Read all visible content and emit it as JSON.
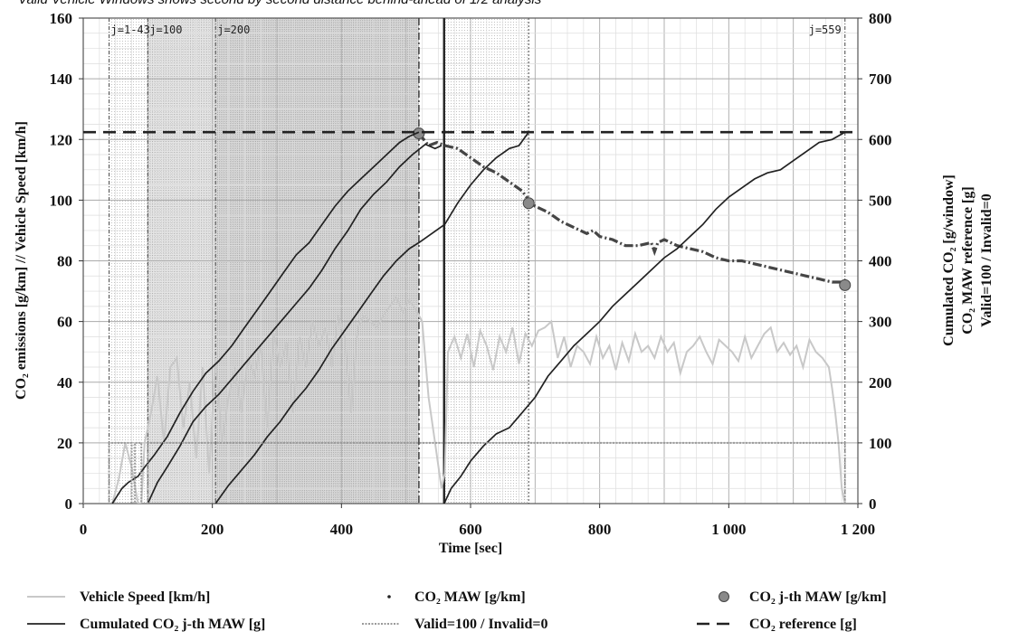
{
  "top_caption": "Valid Vehicle Windows shows second by second distance behind-ahead of 1/2 analysis",
  "chart_data": {
    "type": "line",
    "xlabel": "Time [sec]",
    "ylabel_left": "CO₂ emissions [g/km] // Vehicle Speed [km/h]",
    "ylabel_right": [
      "Cumulated CO₂ [g/window]",
      "CO₂ MAW reference [g]",
      "Valid=100 / Invalid=0"
    ],
    "xlim": [
      0,
      1200
    ],
    "ylim_left": [
      0,
      160
    ],
    "ylim_right": [
      0,
      800
    ],
    "x_ticks": [
      0,
      200,
      400,
      600,
      800,
      1000,
      1200
    ],
    "x_tick_labels": [
      "0",
      "200",
      "400",
      "600",
      "800",
      "1 000",
      "1 200"
    ],
    "y_left_ticks": [
      0,
      20,
      40,
      60,
      80,
      100,
      120,
      140,
      160
    ],
    "y_left_tick_labels": [
      "0",
      "20",
      "40",
      "60",
      "80",
      "100",
      "120",
      "140",
      "160"
    ],
    "y_right_ticks": [
      0,
      100,
      200,
      300,
      400,
      500,
      600,
      700,
      800
    ],
    "y_right_tick_labels": [
      "0",
      "100",
      "200",
      "300",
      "400",
      "500",
      "600",
      "700",
      "800"
    ],
    "grid": true,
    "window_markers": [
      {
        "label": "j=1-43",
        "x": 40
      },
      {
        "label": "j=100",
        "x": 100
      },
      {
        "label": "j=200",
        "x": 205
      },
      {
        "label": "j=559",
        "x": 1180
      }
    ],
    "shaded_windows": [
      {
        "x": [
          40,
          520
        ],
        "shade": "light"
      },
      {
        "x": [
          100,
          520
        ],
        "shade": "medium"
      },
      {
        "x": [
          205,
          520
        ],
        "shade": "medium"
      },
      {
        "x": [
          559,
          690
        ],
        "shade": "light"
      }
    ],
    "series": [
      {
        "name": "Vehicle Speed [km/h]",
        "axis": "left",
        "style": "vehicle-speed",
        "x": [
          45,
          55,
          65,
          75,
          85,
          90,
          95,
          105,
          115,
          125,
          135,
          145,
          155,
          165,
          175,
          185,
          195,
          205,
          215,
          225,
          235,
          245,
          255,
          265,
          275,
          285,
          295,
          305,
          315,
          325,
          335,
          345,
          355,
          365,
          375,
          385,
          395,
          405,
          415,
          425,
          435,
          445,
          455,
          465,
          475,
          485,
          495,
          505,
          515,
          525,
          535,
          545,
          555,
          560,
          565,
          575,
          585,
          595,
          605,
          615,
          625,
          635,
          645,
          655,
          665,
          675,
          685,
          695,
          705,
          715,
          725,
          735,
          745,
          755,
          765,
          775,
          785,
          795,
          805,
          815,
          825,
          835,
          845,
          855,
          865,
          875,
          885,
          895,
          905,
          915,
          925,
          935,
          945,
          955,
          965,
          975,
          985,
          995,
          1005,
          1015,
          1025,
          1035,
          1045,
          1055,
          1065,
          1075,
          1085,
          1095,
          1105,
          1115,
          1125,
          1135,
          1145,
          1155,
          1160,
          1165,
          1170,
          1175,
          1180
        ],
        "values": [
          0,
          8,
          20,
          12,
          0,
          0,
          20,
          30,
          42,
          20,
          45,
          48,
          25,
          40,
          15,
          45,
          10,
          48,
          20,
          35,
          45,
          30,
          48,
          42,
          52,
          25,
          56,
          45,
          53,
          30,
          55,
          45,
          60,
          52,
          58,
          45,
          62,
          55,
          30,
          58,
          62,
          60,
          58,
          62,
          65,
          68,
          63,
          67,
          64,
          60,
          35,
          20,
          5,
          10,
          50,
          55,
          48,
          56,
          45,
          57,
          52,
          44,
          55,
          50,
          58,
          46,
          56,
          52,
          57,
          58,
          60,
          48,
          55,
          45,
          52,
          50,
          46,
          55,
          48,
          52,
          44,
          53,
          47,
          56,
          50,
          52,
          48,
          55,
          50,
          53,
          43,
          50,
          52,
          55,
          50,
          46,
          54,
          52,
          50,
          47,
          55,
          48,
          52,
          56,
          58,
          50,
          53,
          49,
          52,
          45,
          54,
          50,
          48,
          45,
          38,
          30,
          20,
          5,
          0
        ]
      },
      {
        "name": "CO₂ MAW [g/km]",
        "axis": "left",
        "style": "maw",
        "x": [
          520,
          535,
          548,
          560,
          580,
          600,
          620,
          640,
          660,
          680,
          690,
          700,
          720,
          740,
          760,
          780,
          790,
          800,
          820,
          840,
          860,
          880,
          885,
          890,
          900,
          920,
          940,
          960,
          980,
          1000,
          1020,
          1040,
          1060,
          1080,
          1100,
          1120,
          1140,
          1160,
          1180
        ],
        "values": [
          122,
          118,
          119,
          118,
          117,
          114,
          111,
          109,
          106,
          103,
          100,
          98,
          96,
          93,
          91,
          89,
          90,
          88,
          87,
          85,
          85,
          86,
          83,
          86,
          87,
          85,
          84,
          83,
          81,
          80,
          80,
          79,
          78,
          77,
          76,
          75,
          74,
          73,
          73
        ]
      },
      {
        "name": "CO₂ j-th MAW [g/km]",
        "axis": "left",
        "style": "jth-maw",
        "x": [
          520,
          690,
          1180
        ],
        "values": [
          122,
          99,
          72
        ]
      },
      {
        "name": "Cumulated CO₂ j-th MAW [g]",
        "axis": "right",
        "style": "cumulated",
        "curves": [
          {
            "x": [
              45,
              60,
              70,
              85,
              95,
              110,
              130,
              150,
              170,
              190,
              210,
              230,
              250,
              270,
              290,
              310,
              330,
              350,
              370,
              390,
              410,
              430,
              450,
              470,
              490,
              505,
              520
            ],
            "values": [
              0,
              25,
              35,
              45,
              60,
              80,
              110,
              150,
              185,
              215,
              235,
              260,
              290,
              320,
              350,
              380,
              410,
              430,
              460,
              490,
              515,
              535,
              555,
              575,
              595,
              605,
              612
            ]
          },
          {
            "x": [
              100,
              115,
              130,
              150,
              170,
              190,
              210,
              230,
              250,
              270,
              290,
              310,
              330,
              350,
              370,
              390,
              410,
              430,
              450,
              470,
              490,
              510,
              530,
              545,
              555
            ],
            "values": [
              0,
              35,
              60,
              95,
              135,
              160,
              180,
              205,
              230,
              255,
              280,
              305,
              330,
              355,
              385,
              420,
              450,
              485,
              510,
              530,
              555,
              575,
              592,
              585,
              590
            ]
          },
          {
            "x": [
              205,
              225,
              245,
              265,
              285,
              305,
              325,
              345,
              365,
              385,
              405,
              425,
              445,
              465,
              485,
              505,
              520,
              540,
              560,
              580,
              600,
              620,
              640,
              660,
              675,
              690
            ],
            "values": [
              0,
              30,
              55,
              80,
              110,
              135,
              165,
              190,
              220,
              255,
              285,
              315,
              345,
              375,
              400,
              420,
              430,
              445,
              460,
              495,
              525,
              550,
              570,
              585,
              590,
              612
            ]
          },
          {
            "x": [
              559,
              570,
              585,
              600,
              620,
              640,
              660,
              680,
              700,
              720,
              740,
              760,
              780,
              800,
              820,
              840,
              860,
              880,
              900,
              920,
              940,
              960,
              980,
              1000,
              1020,
              1040,
              1060,
              1080,
              1100,
              1120,
              1140,
              1160,
              1180
            ],
            "values": [
              0,
              25,
              45,
              70,
              95,
              115,
              125,
              150,
              175,
              210,
              235,
              260,
              280,
              300,
              325,
              345,
              365,
              385,
              405,
              420,
              440,
              460,
              485,
              505,
              520,
              535,
              545,
              550,
              565,
              580,
              595,
              600,
              612
            ]
          }
        ]
      },
      {
        "name": "Valid=100 / Invalid=0",
        "axis": "right",
        "style": "valid",
        "x": [
          0,
          40,
          40,
          75,
          75,
          80,
          80,
          90,
          90,
          100,
          100,
          1180,
          1180,
          1200
        ],
        "values": [
          0,
          0,
          100,
          100,
          0,
          0,
          100,
          100,
          0,
          0,
          100,
          100,
          0,
          0
        ]
      },
      {
        "name": "CO₂ reference [g]",
        "axis": "right",
        "style": "reference",
        "x": [
          0,
          1200
        ],
        "values": [
          612,
          612
        ]
      }
    ],
    "legend": [
      {
        "label": "Vehicle Speed [km/h]",
        "style": "vehicle-speed"
      },
      {
        "label": "CO₂ MAW [g/km]",
        "style": "maw"
      },
      {
        "label": "CO₂ j-th MAW [g/km]",
        "style": "jth-maw"
      },
      {
        "label": "Cumulated CO₂ j-th MAW [g]",
        "style": "cumulated"
      },
      {
        "label": "Valid=100 / Invalid=0",
        "style": "valid"
      },
      {
        "label": "CO₂ reference [g]",
        "style": "reference"
      }
    ],
    "legend_position": "bottom"
  }
}
